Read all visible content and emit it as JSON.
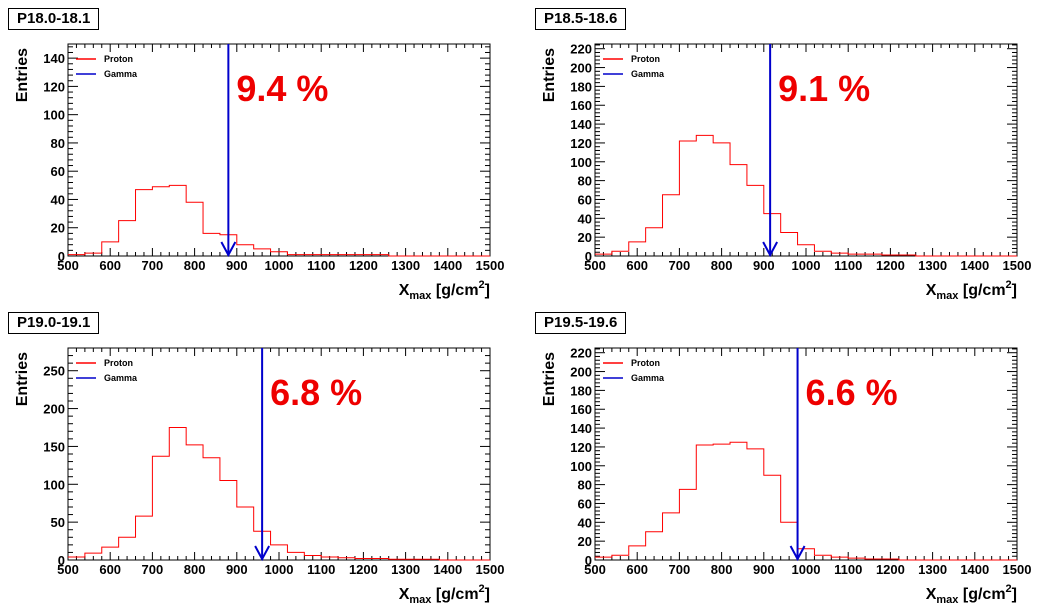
{
  "chart_data": [
    {
      "type": "histogram",
      "title": "P18.0-18.1",
      "xlabel_main": "X",
      "xlabel_sub": "max",
      "xlabel_unit": " [g/cm",
      "xlabel_sup": "2",
      "xlabel_end": "]",
      "ylabel": "Entries",
      "xlim": [
        500,
        1500
      ],
      "ylim": [
        0,
        150
      ],
      "yticks": [
        0,
        20,
        40,
        60,
        80,
        100,
        120,
        140
      ],
      "xticks": [
        500,
        600,
        700,
        800,
        900,
        1000,
        1100,
        1200,
        1300,
        1400,
        1500
      ],
      "bin_width": 40,
      "bin_start": 500,
      "proton_color": "#ff0000",
      "gamma_color": "#0000cc",
      "label_color": "#ee0000",
      "legend": [
        "Proton",
        "Gamma"
      ],
      "gamma_cut": 880,
      "percentage": "9.4 %",
      "values": [
        1,
        2,
        10,
        25,
        47,
        49,
        50,
        38,
        16,
        15,
        8,
        5,
        3,
        1,
        1,
        1,
        1,
        1,
        1,
        0,
        0,
        0,
        0,
        0,
        0
      ]
    },
    {
      "type": "histogram",
      "title": "P18.5-18.6",
      "xlabel_main": "X",
      "xlabel_sub": "max",
      "xlabel_unit": " [g/cm",
      "xlabel_sup": "2",
      "xlabel_end": "]",
      "ylabel": "Entries",
      "xlim": [
        500,
        1500
      ],
      "ylim": [
        0,
        225
      ],
      "yticks": [
        0,
        20,
        40,
        60,
        80,
        100,
        120,
        140,
        160,
        180,
        200,
        220
      ],
      "xticks": [
        500,
        600,
        700,
        800,
        900,
        1000,
        1100,
        1200,
        1300,
        1400,
        1500
      ],
      "bin_width": 40,
      "bin_start": 500,
      "proton_color": "#ff0000",
      "gamma_color": "#0000cc",
      "label_color": "#ee0000",
      "legend": [
        "Proton",
        "Gamma"
      ],
      "gamma_cut": 915,
      "percentage": "9.1 %",
      "values": [
        2,
        5,
        15,
        30,
        65,
        122,
        128,
        120,
        97,
        75,
        45,
        25,
        12,
        5,
        3,
        2,
        2,
        1,
        1,
        0,
        0,
        0,
        0,
        0,
        0
      ]
    },
    {
      "type": "histogram",
      "title": "P19.0-19.1",
      "xlabel_main": "X",
      "xlabel_sub": "max",
      "xlabel_unit": " [g/cm",
      "xlabel_sup": "2",
      "xlabel_end": "]",
      "ylabel": "Entries",
      "xlim": [
        500,
        1500
      ],
      "ylim": [
        0,
        280
      ],
      "yticks": [
        0,
        50,
        100,
        150,
        200,
        250
      ],
      "xticks": [
        500,
        600,
        700,
        800,
        900,
        1000,
        1100,
        1200,
        1300,
        1400,
        1500
      ],
      "bin_width": 40,
      "bin_start": 500,
      "proton_color": "#ff0000",
      "gamma_color": "#0000cc",
      "label_color": "#ee0000",
      "legend": [
        "Proton",
        "Gamma"
      ],
      "gamma_cut": 960,
      "percentage": "6.8 %",
      "values": [
        4,
        9,
        17,
        30,
        58,
        137,
        175,
        152,
        135,
        105,
        70,
        38,
        20,
        10,
        6,
        4,
        3,
        2,
        2,
        1,
        1,
        1,
        0,
        0,
        0
      ]
    },
    {
      "type": "histogram",
      "title": "P19.5-19.6",
      "xlabel_main": "X",
      "xlabel_sub": "max",
      "xlabel_unit": " [g/cm",
      "xlabel_sup": "2",
      "xlabel_end": "]",
      "ylabel": "Entries",
      "xlim": [
        500,
        1500
      ],
      "ylim": [
        0,
        225
      ],
      "yticks": [
        0,
        20,
        40,
        60,
        80,
        100,
        120,
        140,
        160,
        180,
        200,
        220
      ],
      "xticks": [
        500,
        600,
        700,
        800,
        900,
        1000,
        1100,
        1200,
        1300,
        1400,
        1500
      ],
      "bin_width": 40,
      "bin_start": 500,
      "proton_color": "#ff0000",
      "gamma_color": "#0000cc",
      "label_color": "#ee0000",
      "legend": [
        "Proton",
        "Gamma"
      ],
      "gamma_cut": 980,
      "percentage": "6.6 %",
      "values": [
        3,
        5,
        15,
        30,
        50,
        75,
        122,
        123,
        125,
        118,
        90,
        40,
        12,
        5,
        3,
        2,
        1,
        1,
        0,
        0,
        0,
        0,
        0,
        0,
        0
      ]
    }
  ]
}
